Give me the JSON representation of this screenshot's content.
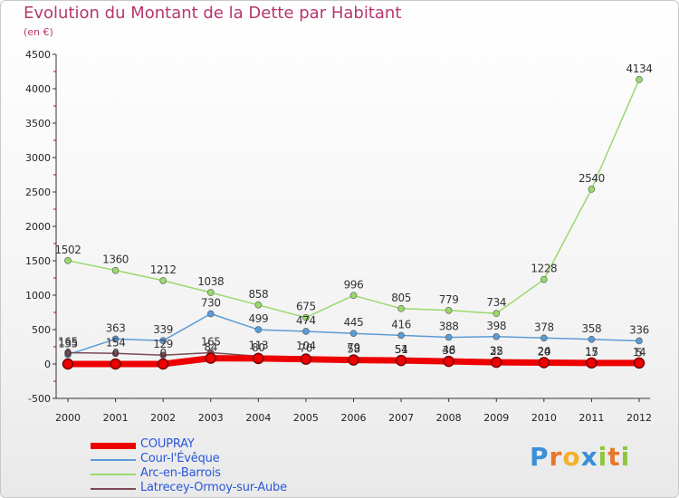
{
  "title": "Evolution du Montant de la Dette par Habitant",
  "subtitle": "(en €)",
  "logo_text": "Proxiti",
  "chart_data": {
    "type": "line",
    "x": [
      "2000",
      "2001",
      "2002",
      "2003",
      "2004",
      "2005",
      "2006",
      "2007",
      "2008",
      "2009",
      "2010",
      "2011",
      "2012"
    ],
    "yticks": [
      -500,
      0,
      500,
      1000,
      1500,
      2000,
      2500,
      3000,
      3500,
      4000,
      4500
    ],
    "ylim": [
      -500,
      4500
    ],
    "grid": false,
    "legend_position": "bottom-left",
    "series": [
      {
        "name": "COUPRAY",
        "color": "#ee0000",
        "values": [
          0,
          0,
          0,
          84,
          80,
          70,
          58,
          51,
          38,
          25,
          20,
          15,
          14
        ],
        "labels": [
          "0",
          "0",
          "0",
          "84",
          "80",
          "70",
          "58",
          "51",
          "38",
          "25",
          "20",
          "15",
          "14"
        ]
      },
      {
        "name": "Cour-l'Évêque",
        "color": "#5b9bd5",
        "values": [
          135,
          363,
          339,
          730,
          499,
          474,
          445,
          416,
          388,
          398,
          378,
          358,
          336
        ],
        "labels": [
          "135",
          "363",
          "339",
          "730",
          "499",
          "474",
          "445",
          "416",
          "388",
          "398",
          "378",
          "358",
          "336"
        ]
      },
      {
        "name": "Arc-en-Barrois",
        "color": "#99d96b",
        "values": [
          1502,
          1360,
          1212,
          1038,
          858,
          675,
          996,
          805,
          779,
          734,
          1228,
          2540,
          4134
        ],
        "labels": [
          "1502",
          "1360",
          "1212",
          "1038",
          "858",
          "675",
          "996",
          "805",
          "779",
          "734",
          "1228",
          "2540",
          "4134"
        ]
      },
      {
        "name": "Latrecey-Ormoy-sur-Aube",
        "color": "#7a4a55",
        "values": [
          165,
          154,
          129,
          165,
          113,
          104,
          79,
          54,
          46,
          32,
          24,
          17,
          5
        ],
        "labels": [
          "165",
          "154",
          "129",
          "165",
          "113",
          "104",
          "79",
          "54",
          "46",
          "32",
          "24",
          "17",
          "5"
        ]
      }
    ]
  }
}
